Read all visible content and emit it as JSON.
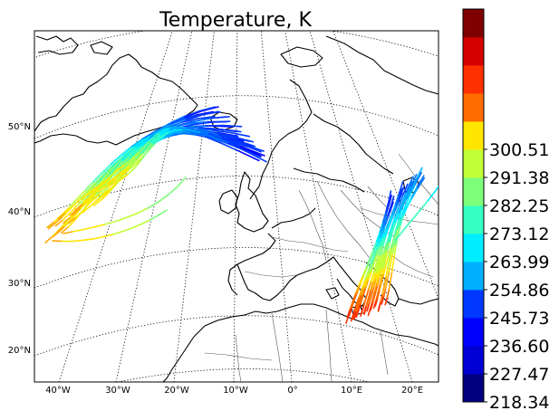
{
  "title": "Temperature, K",
  "lon_ticks": [
    "40°W",
    "30°W",
    "20°W",
    "10°W",
    "0°",
    "10°E",
    "20°E"
  ],
  "lat_ticks": [
    "50°N",
    "40°N",
    "30°N",
    "20°N"
  ],
  "colorbar": {
    "colormap": "jet",
    "vmin": 218.34,
    "vmax": 309.64,
    "levels": 14,
    "tick_labels": [
      "218.34",
      "227.47",
      "236.60",
      "245.73",
      "254.86",
      "263.99",
      "273.12",
      "282.25",
      "291.38",
      "300.51"
    ]
  },
  "colors": {
    "jet": [
      "#00007f",
      "#0000d4",
      "#0000ff",
      "#0038ff",
      "#0074ff",
      "#00b0ff",
      "#00ecff",
      "#36ffc1",
      "#7dff7a",
      "#c1ff36",
      "#ffe600",
      "#ffa900",
      "#ff6d00",
      "#ff3000",
      "#d40000",
      "#7f0000"
    ]
  }
}
